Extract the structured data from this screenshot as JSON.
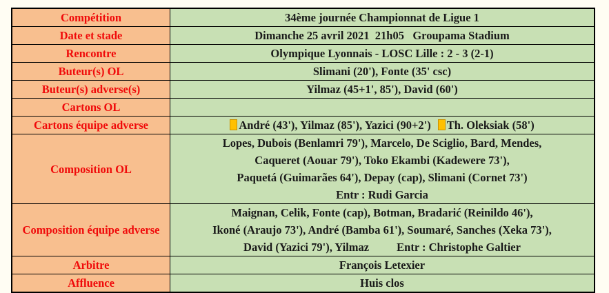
{
  "rows": [
    {
      "label": "Compétition",
      "value": "34ème journée Championnat de Ligue 1"
    },
    {
      "label": "Date et stade",
      "value": "Dimanche 25 avril 2021  21h05   Groupama Stadium"
    },
    {
      "label": "Rencontre",
      "value": "Olympique Lyonnais - LOSC Lille : 2 - 3 (2-1)"
    },
    {
      "label": "Buteur(s) OL",
      "value": "Slimani (20'), Fonte (35' csc)"
    },
    {
      "label": "Buteur(s) adverse(s)",
      "value": "Yilmaz (45+1', 85'), David (60')"
    },
    {
      "label": "Cartons OL",
      "value": ""
    },
    {
      "label": "Cartons équipe adverse",
      "yellow_cards": "André (43'), Yilmaz (85'), Yazici (90+2')",
      "red_or_second": "Th. Oleksiak (58')",
      "card_color": "#ffc000"
    },
    {
      "label": "Composition OL",
      "lines": [
        "Lopes, Dubois (Benlamri 79'), Marcelo, De Sciglio, Bard, Mendes,",
        "Caqueret (Aouar 79'), Toko Ekambi (Kadewere 73'),",
        "Paquetá (Guimarães 64'), Depay (cap), Slimani (Cornet 73')",
        "Entr : Rudi Garcia"
      ]
    },
    {
      "label": "Composition équipe adverse",
      "lines": [
        "Maignan, Celik, Fonte (cap), Botman, Bradarić (Reinildo 46'),",
        "Ikoné (Araujo 73'), André (Bamba 61'), Soumaré, Sanches (Xeka 73'),",
        "David (Yazici 79'), Yilmaz"
      ],
      "coach": "Entr : Christophe Galtier"
    },
    {
      "label": "Arbitre",
      "value": "François Letexier"
    },
    {
      "label": "Affluence",
      "value": "Huis clos"
    }
  ]
}
